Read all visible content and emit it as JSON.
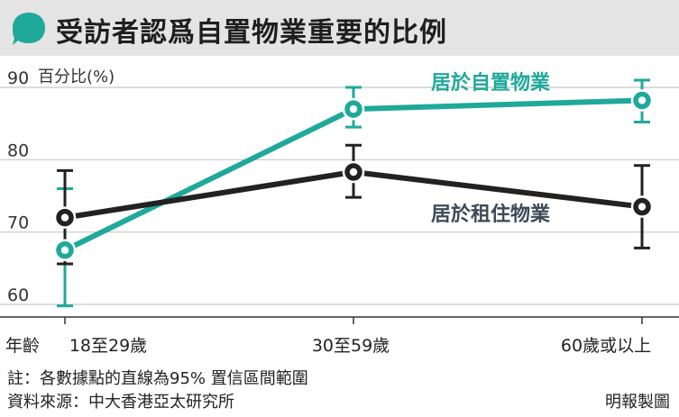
{
  "header": {
    "title": "受訪者認爲自置物業重要的比例",
    "icon": "speech-bubble-icon"
  },
  "colors": {
    "owner": "#1fa99a",
    "renter": "#222222",
    "renter_label": "#3c4b57",
    "grid": "#c8c8c8"
  },
  "chart_data": {
    "type": "line",
    "ylabel": "百分比(%)",
    "xlabel": "年齡",
    "ylim": [
      58,
      92
    ],
    "yticks": [
      60,
      70,
      80,
      90
    ],
    "categories": [
      "18至29歲",
      "30至59歲",
      "60歲或以上"
    ],
    "grid": "horizontal",
    "series": [
      {
        "name": "居於自置物業",
        "values": [
          67.5,
          87.0,
          88.2
        ],
        "ci_low": [
          59.8,
          84.5,
          85.2
        ],
        "ci_high": [
          76.0,
          90.0,
          91.0
        ],
        "color": "#1fa99a"
      },
      {
        "name": "居於租住物業",
        "values": [
          72.0,
          78.3,
          73.5
        ],
        "ci_low": [
          65.6,
          74.8,
          67.8
        ],
        "ci_high": [
          78.5,
          82.0,
          79.2
        ],
        "color": "#222222"
      }
    ]
  },
  "footer": {
    "note": "註：各數據點的直線為95% 置信區間範圍",
    "source": "資料來源：中大香港亞太研究所",
    "credit": "明報製圖"
  }
}
